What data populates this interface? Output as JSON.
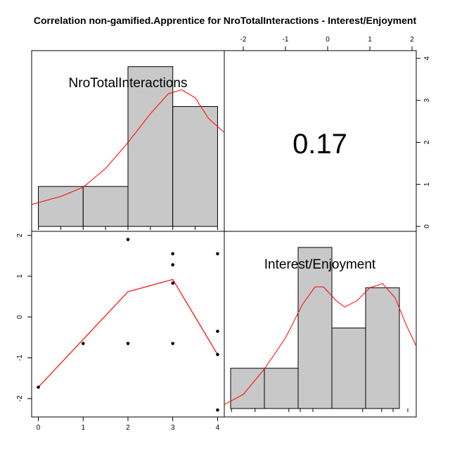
{
  "chart_data": {
    "type": "scatter-matrix",
    "title": "Correlation non-gamified.Apprentice for NroTotalInteractions - Interest/Enjoyment",
    "variables": [
      "NroTotalInteractions",
      "Interest/Enjoyment"
    ],
    "correlation": "0.17",
    "x_ticks": [
      0,
      1,
      2,
      3,
      4
    ],
    "y_ticks": [
      -2,
      -1,
      0,
      1,
      2
    ],
    "top_ticks": [
      -2,
      -1,
      0,
      1,
      2
    ],
    "right_ticks": [
      0,
      1,
      2,
      3,
      4
    ],
    "scatter": {
      "xlim": [
        -0.15,
        4.15
      ],
      "ylim": [
        -2.45,
        2.1
      ],
      "points": [
        {
          "x": 0,
          "y": -1.72
        },
        {
          "x": 1,
          "y": -0.65
        },
        {
          "x": 2,
          "y": 1.9
        },
        {
          "x": 2,
          "y": -0.65
        },
        {
          "x": 3,
          "y": 1.55
        },
        {
          "x": 3,
          "y": 1.28
        },
        {
          "x": 3,
          "y": 0.83
        },
        {
          "x": 3,
          "y": -0.65
        },
        {
          "x": 4,
          "y": 1.55
        },
        {
          "x": 4,
          "y": -0.35
        },
        {
          "x": 4,
          "y": -0.92
        },
        {
          "x": 4,
          "y": -2.28
        }
      ],
      "lowess": [
        {
          "x": 0,
          "y": -1.72
        },
        {
          "x": 2,
          "y": 0.62
        },
        {
          "x": 3,
          "y": 0.92
        },
        {
          "x": 4,
          "y": -0.92
        }
      ]
    },
    "histogram_1": {
      "variable": "NroTotalInteractions",
      "xlim": [
        -0.15,
        4.15
      ],
      "count_max": 4.4,
      "bins": [
        {
          "from": 0,
          "to": 1,
          "count": 1
        },
        {
          "from": 1,
          "to": 2,
          "count": 1
        },
        {
          "from": 2,
          "to": 3,
          "count": 4
        },
        {
          "from": 3,
          "to": 4,
          "count": 3
        }
      ],
      "density": [
        [
          -0.15,
          0.55
        ],
        [
          0.5,
          0.75
        ],
        [
          1.0,
          0.98
        ],
        [
          1.5,
          1.45
        ],
        [
          2.0,
          2.1
        ],
        [
          2.5,
          2.82
        ],
        [
          2.9,
          3.32
        ],
        [
          3.2,
          3.42
        ],
        [
          3.5,
          3.22
        ],
        [
          3.8,
          2.7
        ],
        [
          4.15,
          2.35
        ]
      ]
    },
    "histogram_2": {
      "variable": "Interest/Enjoyment",
      "xlim": [
        -2.45,
        2.1
      ],
      "count_max": 4.4,
      "bins": [
        {
          "from": -2.3,
          "to": -1.5,
          "count": 1
        },
        {
          "from": -1.5,
          "to": -0.7,
          "count": 1
        },
        {
          "from": -0.7,
          "to": 0.1,
          "count": 4
        },
        {
          "from": 0.1,
          "to": 0.9,
          "count": 2
        },
        {
          "from": 0.9,
          "to": 1.7,
          "count": 3
        }
      ],
      "density": [
        [
          -2.45,
          0.1
        ],
        [
          -2.0,
          0.35
        ],
        [
          -1.5,
          0.98
        ],
        [
          -1.0,
          1.75
        ],
        [
          -0.6,
          2.58
        ],
        [
          -0.3,
          3.02
        ],
        [
          -0.1,
          3.02
        ],
        [
          0.2,
          2.68
        ],
        [
          0.4,
          2.52
        ],
        [
          0.7,
          2.68
        ],
        [
          1.0,
          3.0
        ],
        [
          1.3,
          3.1
        ],
        [
          1.6,
          2.75
        ],
        [
          1.85,
          2.1
        ],
        [
          2.1,
          1.55
        ]
      ]
    }
  }
}
